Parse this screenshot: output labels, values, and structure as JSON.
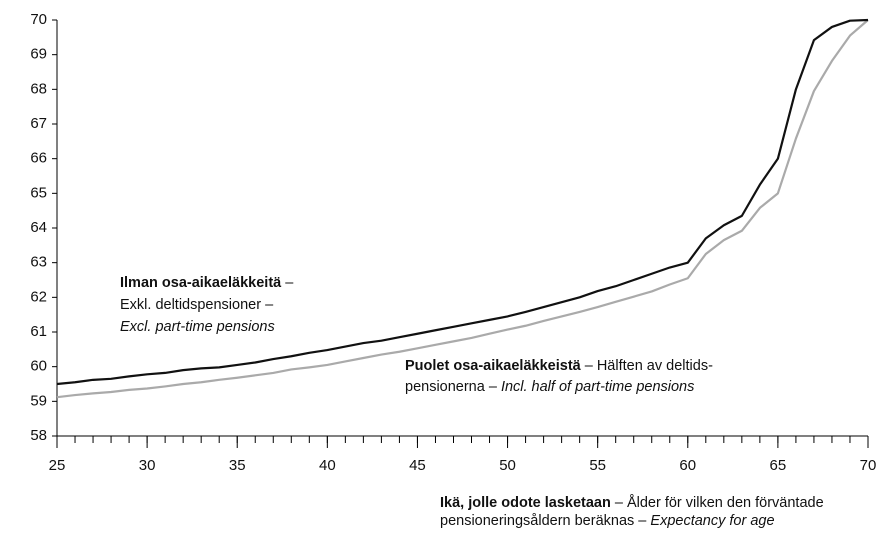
{
  "chart_data": {
    "type": "line",
    "x": [
      25,
      26,
      27,
      28,
      29,
      30,
      31,
      32,
      33,
      34,
      35,
      36,
      37,
      38,
      39,
      40,
      41,
      42,
      43,
      44,
      45,
      46,
      47,
      48,
      49,
      50,
      51,
      52,
      53,
      54,
      55,
      56,
      57,
      58,
      59,
      60,
      61,
      62,
      63,
      64,
      65,
      66,
      67,
      68,
      69,
      70
    ],
    "series": [
      {
        "color": "#111111",
        "values": [
          59.5,
          59.55,
          59.62,
          59.65,
          59.72,
          59.78,
          59.82,
          59.9,
          59.95,
          59.98,
          60.05,
          60.12,
          60.22,
          60.3,
          60.4,
          60.48,
          60.58,
          60.68,
          60.75,
          60.85,
          60.95,
          61.05,
          61.15,
          61.25,
          61.35,
          61.45,
          61.58,
          61.72,
          61.86,
          62.0,
          62.18,
          62.32,
          62.5,
          62.68,
          62.86,
          63.0,
          63.7,
          64.08,
          64.35,
          65.25,
          66.0,
          68.0,
          69.42,
          69.8,
          69.98,
          70
        ]
      },
      {
        "color": "#aaaaaa",
        "values": [
          59.12,
          59.18,
          59.23,
          59.27,
          59.33,
          59.37,
          59.43,
          59.5,
          59.55,
          59.62,
          59.68,
          59.75,
          59.82,
          59.92,
          59.98,
          60.05,
          60.15,
          60.25,
          60.35,
          60.43,
          60.53,
          60.63,
          60.73,
          60.83,
          60.95,
          61.07,
          61.18,
          61.32,
          61.45,
          61.58,
          61.72,
          61.87,
          62.02,
          62.17,
          62.37,
          62.55,
          63.25,
          63.65,
          63.92,
          64.58,
          65.0,
          66.58,
          67.95,
          68.82,
          69.55,
          70
        ]
      }
    ],
    "xlim": [
      25,
      70
    ],
    "xticks": [
      25,
      30,
      35,
      40,
      45,
      50,
      55,
      60,
      65,
      70
    ],
    "ylim": [
      58,
      70
    ],
    "yticks": [
      58,
      59,
      60,
      61,
      62,
      63,
      64,
      65,
      66,
      67,
      68,
      69,
      70
    ],
    "annotations": [
      {
        "lines": [
          [
            {
              "text": "Ilman osa-aikaeläkkeitä",
              "style": "bold"
            },
            {
              "text": " –",
              "style": "normal"
            }
          ],
          [
            {
              "text": "Exkl. deltidspensioner –",
              "style": "normal"
            }
          ],
          [
            {
              "text": "Excl. part-time pensions",
              "style": "italic"
            }
          ]
        ]
      },
      {
        "lines": [
          [
            {
              "text": "Puolet osa-aikaeläkkeistä",
              "style": "bold"
            },
            {
              "text": " – Hälften av deltids-",
              "style": "normal"
            }
          ],
          [
            {
              "text": "pensionerna – ",
              "style": "normal"
            },
            {
              "text": "Incl. half of part-time pensions",
              "style": "italic"
            }
          ]
        ]
      }
    ],
    "xlabel": [
      [
        {
          "text": "Ikä, jolle odote lasketaan",
          "style": "bold"
        },
        {
          "text": " – Ålder för vilken den förväntade",
          "style": "normal"
        }
      ],
      [
        {
          "text": "pensioneringsåldern beräknas – ",
          "style": "normal"
        },
        {
          "text": "Expectancy for age",
          "style": "italic"
        }
      ]
    ]
  }
}
